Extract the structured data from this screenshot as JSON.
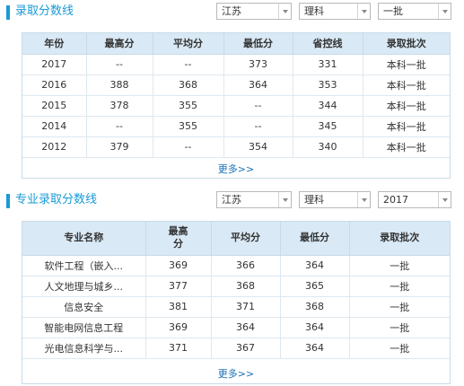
{
  "section1": {
    "title": "录取分数线",
    "selects": [
      "江苏",
      "理科",
      "一批"
    ],
    "headers": [
      "年份",
      "最高分",
      "平均分",
      "最低分",
      "省控线",
      "录取批次"
    ],
    "rows": [
      [
        "2017",
        "--",
        "--",
        "373",
        "331",
        "本科一批"
      ],
      [
        "2016",
        "388",
        "368",
        "364",
        "353",
        "本科一批"
      ],
      [
        "2015",
        "378",
        "355",
        "--",
        "344",
        "本科一批"
      ],
      [
        "2014",
        "--",
        "355",
        "--",
        "345",
        "本科一批"
      ],
      [
        "2012",
        "379",
        "--",
        "354",
        "340",
        "本科一批"
      ]
    ],
    "more": "更多>>"
  },
  "section2": {
    "title": "专业录取分数线",
    "selects": [
      "江苏",
      "理科",
      "2017"
    ],
    "headers": [
      "专业名称",
      "最高分",
      "平均分",
      "最低分",
      "录取批次"
    ],
    "rows": [
      [
        "软件工程（嵌入...",
        "369",
        "366",
        "364",
        "一批"
      ],
      [
        "人文地理与城乡...",
        "377",
        "368",
        "365",
        "一批"
      ],
      [
        "信息安全",
        "381",
        "371",
        "368",
        "一批"
      ],
      [
        "智能电网信息工程",
        "369",
        "364",
        "364",
        "一批"
      ],
      [
        "光电信息科学与...",
        "371",
        "367",
        "364",
        "一批"
      ]
    ],
    "more": "更多>>"
  }
}
